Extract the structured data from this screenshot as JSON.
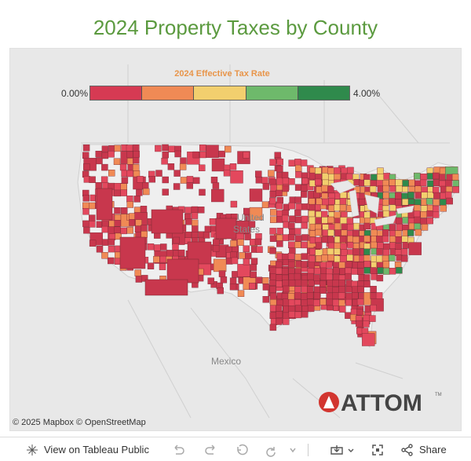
{
  "page": {
    "title": "2024 Property Taxes by County"
  },
  "legend": {
    "title": "2024 Effective Tax Rate",
    "min_label": "0.00%",
    "max_label": "4.00%",
    "colors": [
      "#d63a53",
      "#f08a55",
      "#f2cf6e",
      "#6eb96b",
      "#2f8a4c"
    ]
  },
  "map": {
    "labels": {
      "country_us": "United States",
      "country_us_line1": "United",
      "country_us_line2": "States",
      "country_mexico": "Mexico"
    },
    "attribution": "© 2025 Mapbox  © OpenStreetMap",
    "basemap_color": "#e8e8e8",
    "county_colors": [
      "#c8374d",
      "#e3485d",
      "#f08a55",
      "#f2cf6e",
      "#6eb96b",
      "#2f8a4c"
    ]
  },
  "logo": {
    "text": "ATTOM",
    "trademark": "TM",
    "color": "#d2352f"
  },
  "toolbar": {
    "view_label": "View on Tableau Public",
    "share_label": "Share"
  }
}
